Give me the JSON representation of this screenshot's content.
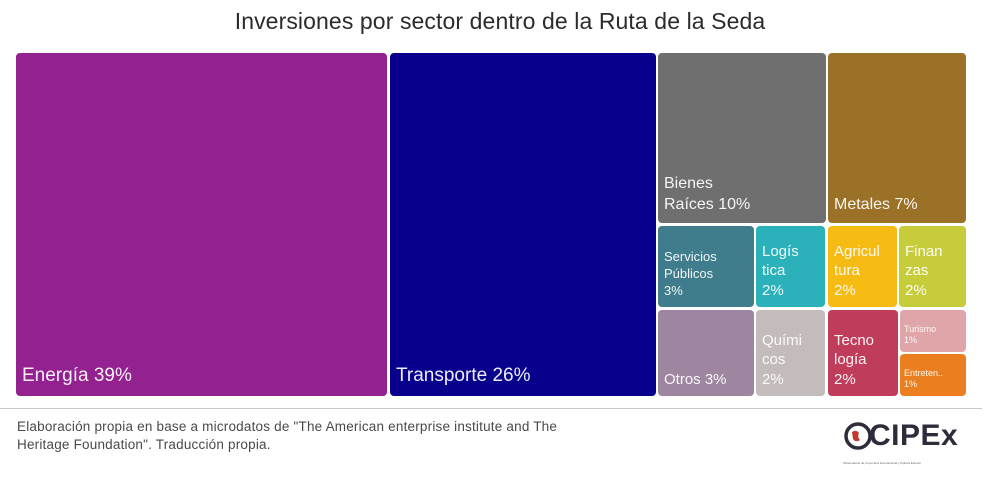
{
  "chart_data": {
    "type": "treemap",
    "title": "Inversiones por sector dentro de la Ruta de la Seda",
    "unit": "%",
    "series": [
      {
        "name": "Energía",
        "label": "Energía 39%",
        "value": 39,
        "color": "#93218f"
      },
      {
        "name": "Transporte",
        "label": "Transporte 26%",
        "value": 26,
        "color": "#08008c"
      },
      {
        "name": "Bienes Raíces",
        "label": "Bienes\nRaíces 10%",
        "value": 10,
        "color": "#6f6f6f"
      },
      {
        "name": "Metales",
        "label": "Metales 7%",
        "value": 7,
        "color": "#9b7128"
      },
      {
        "name": "Servicios Públicos",
        "label": "Servicios\nPúblicos\n3%",
        "value": 3,
        "color": "#3f7d8c"
      },
      {
        "name": "Logística",
        "label": "Logís\ntica\n2%",
        "value": 2,
        "color": "#2bb1b9"
      },
      {
        "name": "Agricultura",
        "label": "Agricul\ntura\n2%",
        "value": 2,
        "color": "#f5bb12"
      },
      {
        "name": "Finanzas",
        "label": "Finan\nzas\n2%",
        "value": 2,
        "color": "#c7cc3b"
      },
      {
        "name": "Otros",
        "label": "Otros 3%",
        "value": 3,
        "color": "#9f86a0"
      },
      {
        "name": "Químicos",
        "label": "Quími\ncos\n2%",
        "value": 2,
        "color": "#c4bcbc"
      },
      {
        "name": "Tecnología",
        "label": "Tecno\nlogía\n2%",
        "value": 2,
        "color": "#bf3d5b"
      },
      {
        "name": "Turismo",
        "label": "Turismo\n1%",
        "value": 1,
        "color": "#e0a5a9"
      },
      {
        "name": "Entretenimiento",
        "label": "Entreten..\n1%",
        "value": 1,
        "color": "#eb7f20"
      }
    ]
  },
  "footer": {
    "source": "Elaboración propia en base a microdatos de \"The American enterprise institute and The Heritage Foundation\". Traducción propia.",
    "logo_text": "CIPEx",
    "logo_subtitle": "Observatorio de Coyuntura Internacional y Política Exterior"
  }
}
